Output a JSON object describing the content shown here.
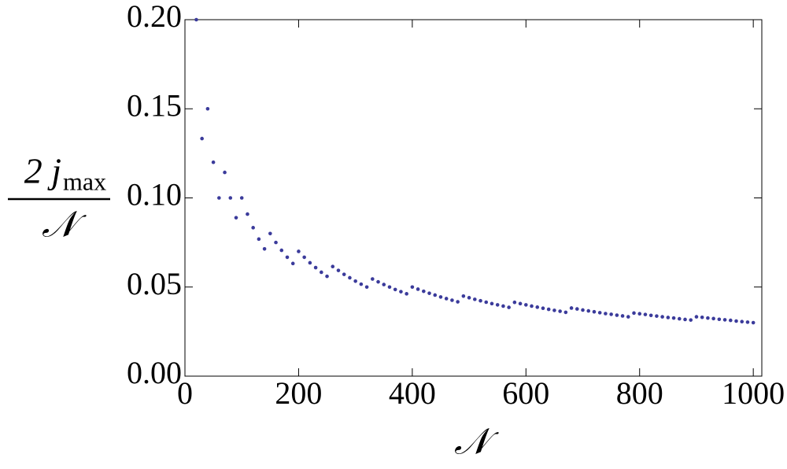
{
  "chart_data": {
    "type": "scatter",
    "x_label": "𝒩",
    "y_label": {
      "numerator": "2 j",
      "subscript": "max",
      "denominator": "𝒩"
    },
    "color": "#3b3b9b",
    "x": [
      20,
      30,
      40,
      50,
      60,
      70,
      80,
      90,
      100,
      110,
      120,
      130,
      140,
      150,
      160,
      170,
      180,
      190,
      200,
      210,
      220,
      230,
      240,
      250,
      260,
      270,
      280,
      290,
      300,
      310,
      320,
      330,
      340,
      350,
      360,
      370,
      380,
      390,
      400,
      410,
      420,
      430,
      440,
      450,
      460,
      470,
      480,
      490,
      500,
      510,
      520,
      530,
      540,
      550,
      560,
      570,
      580,
      590,
      600,
      610,
      620,
      630,
      640,
      650,
      660,
      670,
      680,
      690,
      700,
      710,
      720,
      730,
      740,
      750,
      760,
      770,
      780,
      790,
      800,
      810,
      820,
      830,
      840,
      850,
      860,
      870,
      880,
      890,
      900,
      910,
      920,
      930,
      940,
      950,
      960,
      970,
      980,
      990,
      1000
    ],
    "values": [
      0.2,
      0.1333,
      0.15,
      0.12,
      0.1,
      0.1143,
      0.1,
      0.0889,
      0.1,
      0.0909,
      0.0833,
      0.0769,
      0.0714,
      0.08,
      0.075,
      0.0706,
      0.0667,
      0.0632,
      0.07,
      0.0667,
      0.0636,
      0.0609,
      0.0583,
      0.056,
      0.0615,
      0.0593,
      0.0571,
      0.0552,
      0.0533,
      0.0516,
      0.05,
      0.0545,
      0.0529,
      0.0514,
      0.05,
      0.0486,
      0.0474,
      0.0462,
      0.05,
      0.0488,
      0.0476,
      0.0465,
      0.0455,
      0.0444,
      0.0435,
      0.0426,
      0.0417,
      0.0449,
      0.044,
      0.0431,
      0.0423,
      0.0415,
      0.0407,
      0.04,
      0.0393,
      0.0386,
      0.0414,
      0.0407,
      0.04,
      0.0393,
      0.0387,
      0.0381,
      0.0375,
      0.0369,
      0.0364,
      0.0358,
      0.0382,
      0.0377,
      0.0371,
      0.0366,
      0.0361,
      0.0356,
      0.0351,
      0.0347,
      0.0342,
      0.0338,
      0.0333,
      0.0354,
      0.035,
      0.0346,
      0.0341,
      0.0337,
      0.0333,
      0.0329,
      0.0326,
      0.0322,
      0.0318,
      0.0315,
      0.0333,
      0.033,
      0.0326,
      0.0323,
      0.0319,
      0.0316,
      0.0313,
      0.0309,
      0.0306,
      0.0303,
      0.03
    ],
    "xlim": [
      0,
      1015
    ],
    "ylim": [
      0,
      0.2
    ],
    "xticks": [
      0,
      200,
      400,
      600,
      800,
      1000
    ],
    "yticks": [
      {
        "value": 0,
        "label": "0.00"
      },
      {
        "value": 0.05,
        "label": "0.05"
      },
      {
        "value": 0.1,
        "label": "0.10"
      },
      {
        "value": 0.15,
        "label": "0.15"
      },
      {
        "value": 0.2,
        "label": "0.20"
      }
    ]
  }
}
